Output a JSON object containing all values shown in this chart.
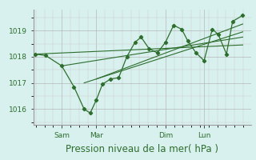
{
  "background_color": "#d8f0ee",
  "grid_color_major": "#aaaaaa",
  "grid_color_minor": "#cccccc",
  "line_color": "#2d6e2d",
  "xlabel": "Pression niveau de la mer( hPa )",
  "xlabel_fontsize": 8.5,
  "tick_label_color": "#2d6e2d",
  "tick_fontsize": 6.5,
  "yticks": [
    1016,
    1017,
    1018,
    1019
  ],
  "ylim": [
    1015.4,
    1019.8
  ],
  "xlim": [
    -0.01,
    1.06
  ],
  "day_labels": [
    "Sam",
    "Mar",
    "Dim",
    "Lun"
  ],
  "day_positions": [
    0.13,
    0.3,
    0.64,
    0.83
  ],
  "series1_x": [
    0.0,
    0.05,
    0.13,
    0.19,
    0.24,
    0.27,
    0.3,
    0.33,
    0.37,
    0.41,
    0.45,
    0.49,
    0.52,
    0.56,
    0.6,
    0.64,
    0.68,
    0.72,
    0.75,
    0.79,
    0.83,
    0.87,
    0.9,
    0.94,
    0.97,
    1.02
  ],
  "series1_y": [
    1018.1,
    1018.05,
    1017.65,
    1016.85,
    1016.0,
    1015.85,
    1016.35,
    1016.95,
    1017.15,
    1017.2,
    1018.0,
    1018.55,
    1018.75,
    1018.3,
    1018.15,
    1018.55,
    1019.2,
    1019.05,
    1018.6,
    1018.15,
    1017.85,
    1019.05,
    1018.85,
    1018.1,
    1019.35,
    1019.58
  ],
  "trend1_x": [
    0.0,
    1.02
  ],
  "trend1_y": [
    1018.1,
    1018.45
  ],
  "trend2_x": [
    0.13,
    1.02
  ],
  "trend2_y": [
    1017.65,
    1018.75
  ],
  "trend3_x": [
    0.24,
    1.02
  ],
  "trend3_y": [
    1017.0,
    1018.95
  ],
  "trend4_x": [
    0.3,
    1.02
  ],
  "trend4_y": [
    1017.15,
    1019.25
  ]
}
